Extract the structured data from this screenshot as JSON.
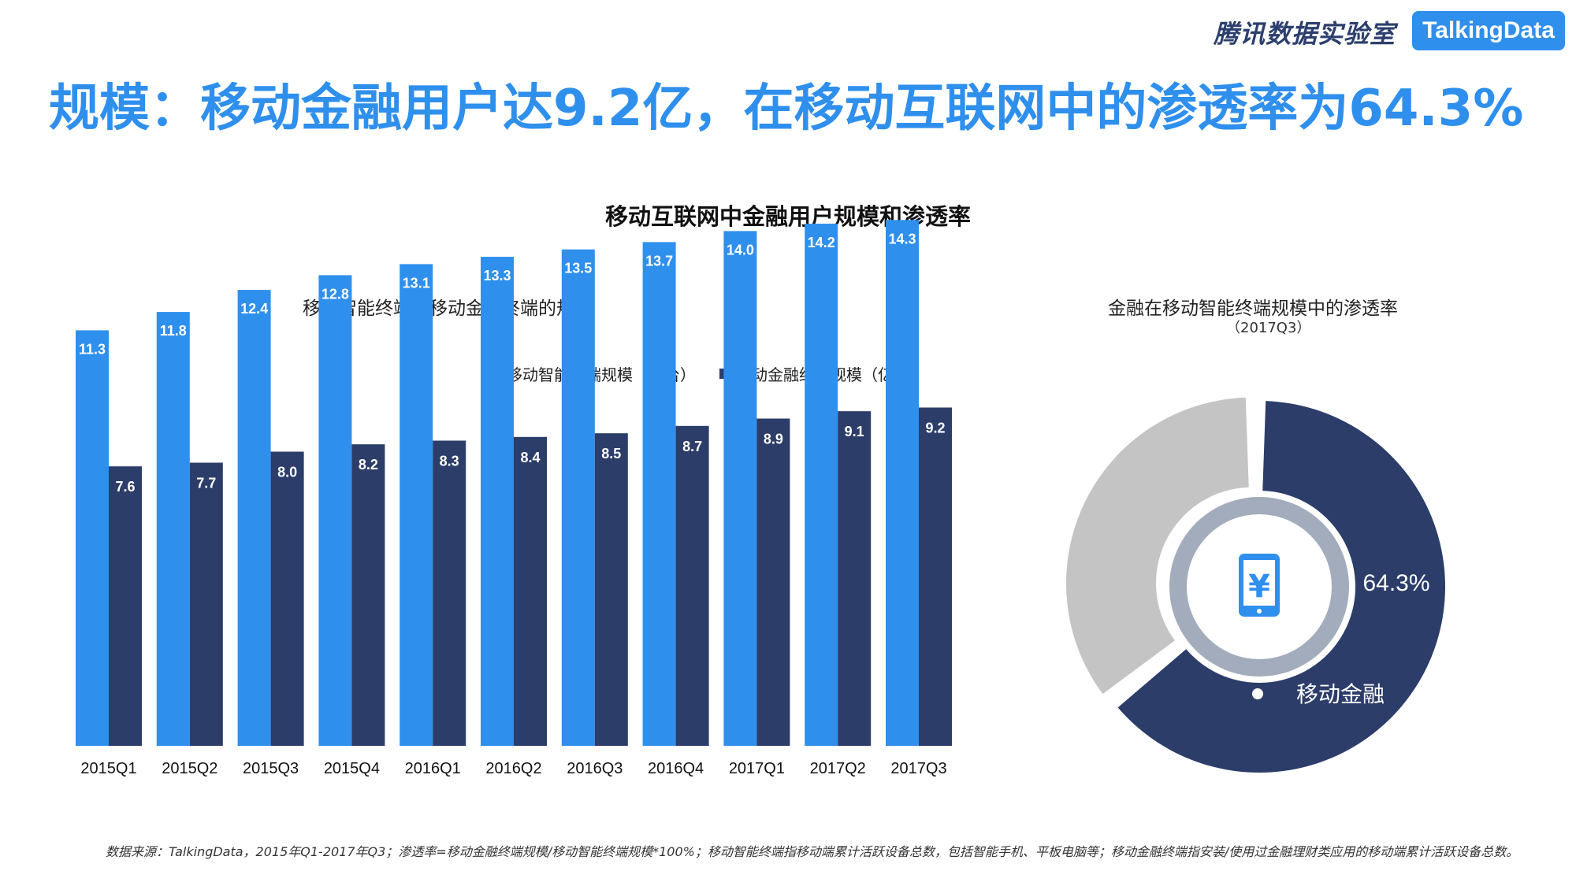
{
  "brand": {
    "cn_name": "腾讯数据实验室",
    "logo_text": "TalkingData"
  },
  "headline": "规模：移动金融用户达9.2亿，在移动互联网中的渗透率为64.3%",
  "colors": {
    "light_blue": "#2f8fed",
    "navy": "#2c3d6a",
    "grey": "#c4c4c4",
    "ring": "#a3acbc",
    "icon_blue": "#2f8fed"
  },
  "chart_data": [
    {
      "type": "bar",
      "title": "移动互联网中金融用户规模和渗透率",
      "subtitle": "移动智能终端和移动金融终端的规模",
      "categories": [
        "2015Q1",
        "2015Q2",
        "2015Q3",
        "2015Q4",
        "2016Q1",
        "2016Q2",
        "2016Q3",
        "2016Q4",
        "2017Q1",
        "2017Q2",
        "2017Q3"
      ],
      "series": [
        {
          "name": "移动智能终端规模（亿台）",
          "values": [
            11.3,
            11.8,
            12.4,
            12.8,
            13.1,
            13.3,
            13.5,
            13.7,
            14.0,
            14.2,
            14.3
          ],
          "labels": [
            "11.3",
            "11.8",
            "12.4",
            "12.8",
            "13.1",
            "13.3",
            "13.5",
            "13.7",
            "14.0",
            "14.2",
            "14.3"
          ]
        },
        {
          "name": "移动金融终端规模（亿台）",
          "values": [
            7.6,
            7.7,
            8.0,
            8.2,
            8.3,
            8.4,
            8.5,
            8.7,
            8.9,
            9.1,
            9.2
          ],
          "labels": [
            "7.6",
            "7.7",
            "8.0",
            "8.2",
            "8.3",
            "8.4",
            "8.5",
            "8.7",
            "8.9",
            "9.1",
            "9.2"
          ]
        }
      ],
      "ylim": [
        0,
        16
      ],
      "grid": false,
      "legend": "top"
    },
    {
      "type": "pie",
      "title": "金融在移动智能终端规模中的渗透率",
      "subtitle": "（2017Q3）",
      "slices": [
        {
          "name": "移动金融",
          "value": 64.3,
          "label": "64.3%"
        },
        {
          "name": "",
          "value": 35.7
        }
      ]
    }
  ],
  "footnote": "数据来源：TalkingData，2015年Q1-2017年Q3；渗透率=移动金融终端规模/移动智能终端规模*100%；移动智能终端指移动端累计活跃设备总数，包括智能手机、平板电脑等；移动金融终端指安装/使用过金融理财类应用的移动端累计活跃设备总数。",
  "icons": {
    "center": "mobile-yuan-icon"
  }
}
